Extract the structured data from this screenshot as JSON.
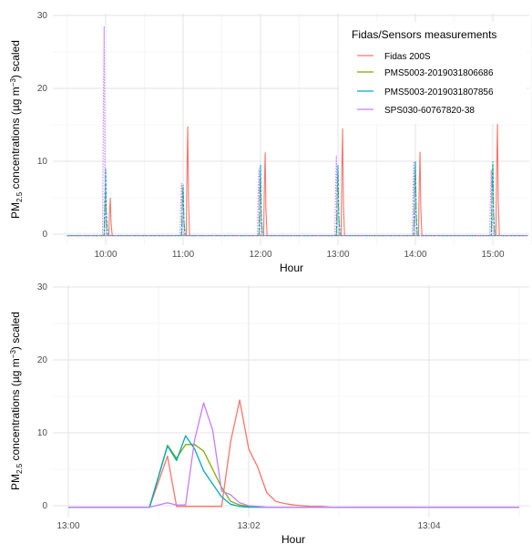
{
  "chart_data": [
    {
      "type": "line",
      "xlabel": "Hour",
      "ylabel_main": "PM",
      "ylabel_sub": "2.5",
      "ylabel_rest": " concentrations (µg m",
      "ylabel_sup": "−3",
      "ylabel_end": ") scaled",
      "ylim": [
        0,
        30
      ],
      "xlim": [
        "09:30",
        "15:30"
      ],
      "yticks": [
        0,
        10,
        20,
        30
      ],
      "xticks": [
        "10:00",
        "11:00",
        "12:00",
        "13:00",
        "14:00",
        "15:00"
      ],
      "legend": {
        "title": "Fidas/Sensors measurements",
        "placement": "top-right",
        "entries": [
          "Fidas 200S",
          "PMS5003-2019031806686",
          "PMS5003-2019031807856",
          "SPS030-60767820-38"
        ]
      },
      "spike_peaks": {
        "Fidas 200S": [
          5,
          14.8,
          11.2,
          14.5,
          11.3,
          15.2
        ],
        "PMS5003-2019031806686": [
          6,
          6.5,
          7.5,
          8.5,
          9.7,
          9.5
        ],
        "PMS5003-2019031807856": [
          9,
          6.8,
          9.5,
          9.5,
          10,
          10
        ],
        "SPS030-60767820-38": [
          28.5,
          7,
          9,
          10.8,
          10,
          8.8
        ]
      },
      "baseline": -0.2
    },
    {
      "type": "line",
      "xlabel": "Hour",
      "ylabel_main": "PM",
      "ylabel_sub": "2.5",
      "ylabel_rest": " concentrations (µg m",
      "ylabel_sup": "−3",
      "ylabel_end": ") scaled",
      "ylim": [
        0,
        30
      ],
      "xlim": [
        "13:00",
        "13:05"
      ],
      "yticks": [
        0,
        10,
        20,
        30
      ],
      "xticks": [
        "13:00",
        "13:02",
        "13:04"
      ],
      "x": [
        13.0,
        13.9,
        14.1,
        14.2,
        14.3,
        14.4,
        14.5,
        14.6,
        14.7,
        14.8,
        14.9,
        15.0,
        15.1,
        15.2,
        15.3,
        15.4,
        15.5,
        15.6,
        15.7,
        15.8,
        15.9,
        16.0,
        16.3,
        16.6,
        17.0,
        17.5,
        18.0
      ],
      "series": [
        {
          "name": "Fidas 200S",
          "color": "#F8766D",
          "values": [
            -0.2,
            -0.2,
            6.8,
            -0.1,
            -0.1,
            -0.1,
            -0.1,
            -0.1,
            -0.1,
            8.8,
            14.5,
            7.8,
            5.3,
            1.8,
            0.6,
            0.3,
            0.1,
            0,
            -0.1,
            -0.1,
            -0.2,
            -0.2,
            -0.2,
            -0.2,
            -0.2,
            -0.2,
            -0.2
          ]
        },
        {
          "name": "PMS5003-2019031806686",
          "color": "#7CAE00",
          "values": [
            -0.2,
            -0.2,
            8.3,
            6.5,
            8.4,
            8.4,
            7.5,
            5.0,
            2.5,
            0.6,
            0.1,
            -0.1,
            -0.2,
            -0.2,
            -0.2,
            -0.2,
            -0.2,
            -0.2,
            -0.2,
            -0.2,
            -0.2,
            -0.2,
            -0.2,
            -0.2,
            -0.2,
            -0.2,
            -0.2
          ]
        },
        {
          "name": "PMS5003-2019031807856",
          "color": "#00A9C0",
          "values": [
            -0.2,
            -0.2,
            8.2,
            6.2,
            9.6,
            7.8,
            4.8,
            3.0,
            1.2,
            0.2,
            -0.1,
            -0.2,
            -0.2,
            -0.2,
            -0.2,
            -0.2,
            -0.2,
            -0.2,
            -0.2,
            -0.2,
            -0.2,
            -0.2,
            -0.2,
            -0.2,
            -0.2,
            -0.2,
            -0.2
          ]
        },
        {
          "name": "SPS030-60767820-38",
          "color": "#C77CFF",
          "values": [
            -0.2,
            -0.2,
            0.4,
            0.1,
            0.1,
            9.0,
            14.1,
            10.4,
            2.0,
            1.5,
            0.4,
            0.0,
            -0.1,
            -0.2,
            -0.2,
            -0.2,
            -0.2,
            -0.2,
            -0.2,
            -0.2,
            -0.2,
            -0.2,
            -0.2,
            -0.2,
            -0.2,
            -0.2,
            -0.2
          ]
        }
      ]
    }
  ],
  "colors": {
    "panel_bg": "#ffffff",
    "grid_major": "#e3e3e3",
    "grid_minor": "#f0f0f0",
    "fidas": "#F8766D",
    "pms1": "#7CAE00",
    "pms2": "#00A9C0",
    "sps": "#C77CFF"
  }
}
